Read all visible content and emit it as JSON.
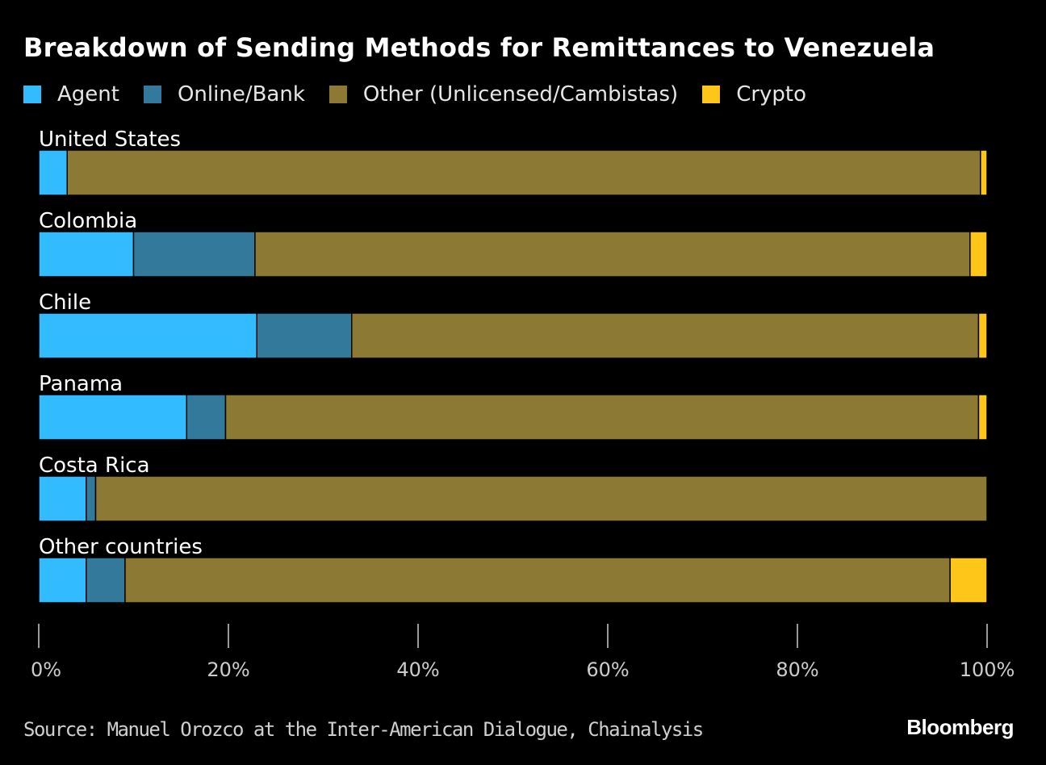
{
  "chart_data": {
    "type": "bar",
    "orientation": "horizontal",
    "stacked": true,
    "title": "Breakdown of Sending Methods for Remittances to Venezuela",
    "categories": [
      "United States",
      "Colombia",
      "Chile",
      "Panama",
      "Costa Rica",
      "Other countries"
    ],
    "series": [
      {
        "name": "Agent",
        "color": "#33bbff",
        "values": [
          3,
          10,
          23,
          15.6,
          5,
          5
        ]
      },
      {
        "name": "Online/Bank",
        "color": "#33799c",
        "values": [
          0,
          12.8,
          10,
          4.1,
          1,
          4.1
        ]
      },
      {
        "name": "Other (Unlicensed/Cambistas)",
        "color": "#8c7a34",
        "values": [
          96.3,
          75.4,
          66.1,
          79.4,
          94,
          87
        ]
      },
      {
        "name": "Crypto",
        "color": "#ffc61a",
        "values": [
          0.7,
          1.8,
          0.9,
          0.9,
          0,
          3.9
        ]
      }
    ],
    "xlim": [
      0,
      100
    ],
    "xticks": [
      "0%",
      "20%",
      "40%",
      "60%",
      "80%",
      "100%"
    ],
    "legend_position": "top-left",
    "grid": false
  },
  "source": "Source: Manuel Orozco at the Inter-American Dialogue, Chainalysis",
  "logo": "Bloomberg"
}
